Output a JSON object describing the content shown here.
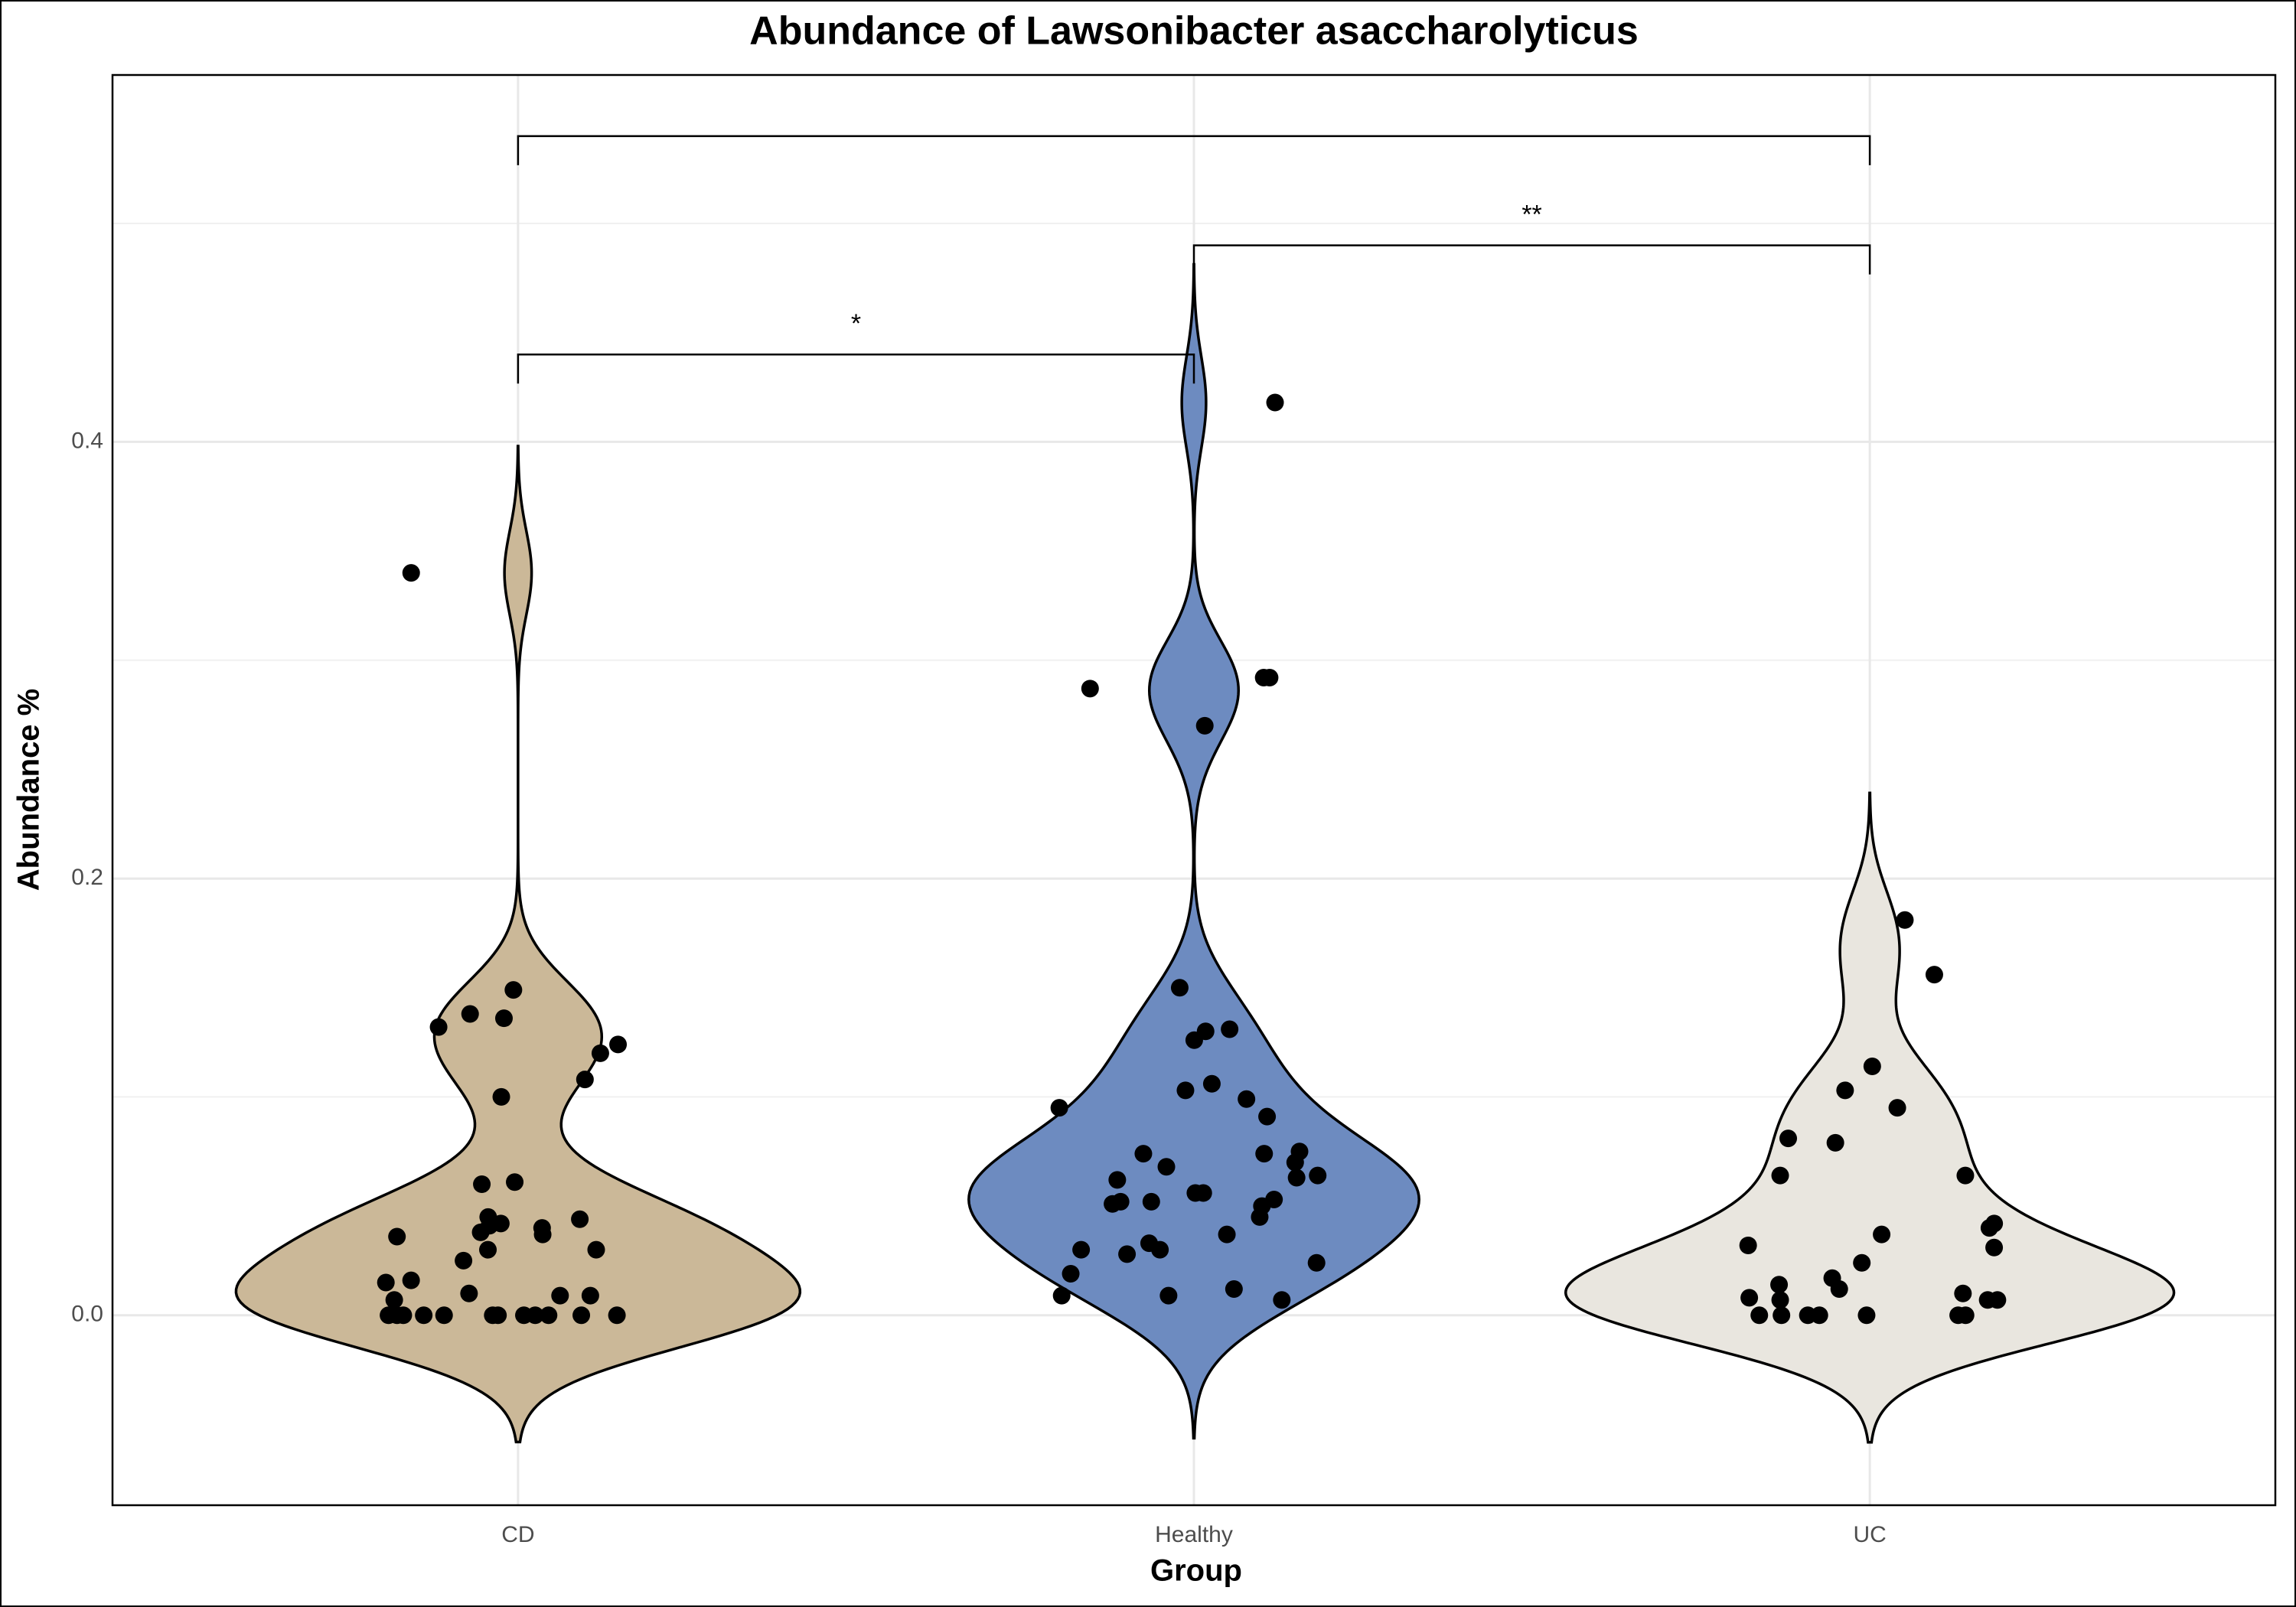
{
  "chart_data": {
    "type": "violin",
    "title": "Abundance of Lawsonibacter asaccharolyticus",
    "x_label": "Group",
    "y_label": "Abundance %",
    "categories": [
      "CD",
      "Healthy",
      "UC"
    ],
    "series": [
      {
        "name": "CD",
        "color": "#cbb898",
        "values": [
          0.34,
          0.149,
          0.138,
          0.136,
          0.132,
          0.124,
          0.12,
          0.108,
          0.1,
          0.061,
          0.06,
          0.045,
          0.044,
          0.042,
          0.041,
          0.04,
          0.038,
          0.037,
          0.036,
          0.03,
          0.03,
          0.025,
          0.016,
          0.015,
          0.01,
          0.009,
          0.009,
          0.007,
          0,
          0,
          0,
          0,
          0,
          0,
          0,
          0,
          0,
          0,
          0,
          0
        ]
      },
      {
        "name": "Healthy",
        "color": "#6d8bc0",
        "values": [
          0.418,
          0.292,
          0.292,
          0.287,
          0.27,
          0.15,
          0.131,
          0.13,
          0.126,
          0.106,
          0.103,
          0.099,
          0.095,
          0.091,
          0.075,
          0.074,
          0.074,
          0.07,
          0.068,
          0.064,
          0.063,
          0.062,
          0.056,
          0.056,
          0.053,
          0.052,
          0.052,
          0.051,
          0.05,
          0.045,
          0.037,
          0.033,
          0.03,
          0.03,
          0.028,
          0.024,
          0.019,
          0.012,
          0.009,
          0.009,
          0.007
        ]
      },
      {
        "name": "UC",
        "color": "#e9e6df",
        "values": [
          0.181,
          0.156,
          0.114,
          0.103,
          0.095,
          0.081,
          0.079,
          0.064,
          0.064,
          0.042,
          0.04,
          0.037,
          0.032,
          0.031,
          0.024,
          0.017,
          0.014,
          0.012,
          0.01,
          0.008,
          0.007,
          0.007,
          0.007,
          0,
          0,
          0,
          0,
          0,
          0,
          0
        ]
      }
    ],
    "point_color": "#000000",
    "ylim": [
      -0.087,
      0.568
    ],
    "yticks": [
      {
        "value": 0,
        "label": "0.0"
      },
      0.2,
      0.4
    ],
    "minor_yticks": [
      0.1,
      0.3,
      0.5
    ],
    "grid": true,
    "brackets": [
      {
        "from": 0,
        "to": 2,
        "y": 0.54
      },
      {
        "from": 1,
        "to": 2,
        "y": 0.49,
        "label": "**"
      },
      {
        "from": 0,
        "to": 1,
        "y": 0.44,
        "label": "*"
      }
    ]
  }
}
